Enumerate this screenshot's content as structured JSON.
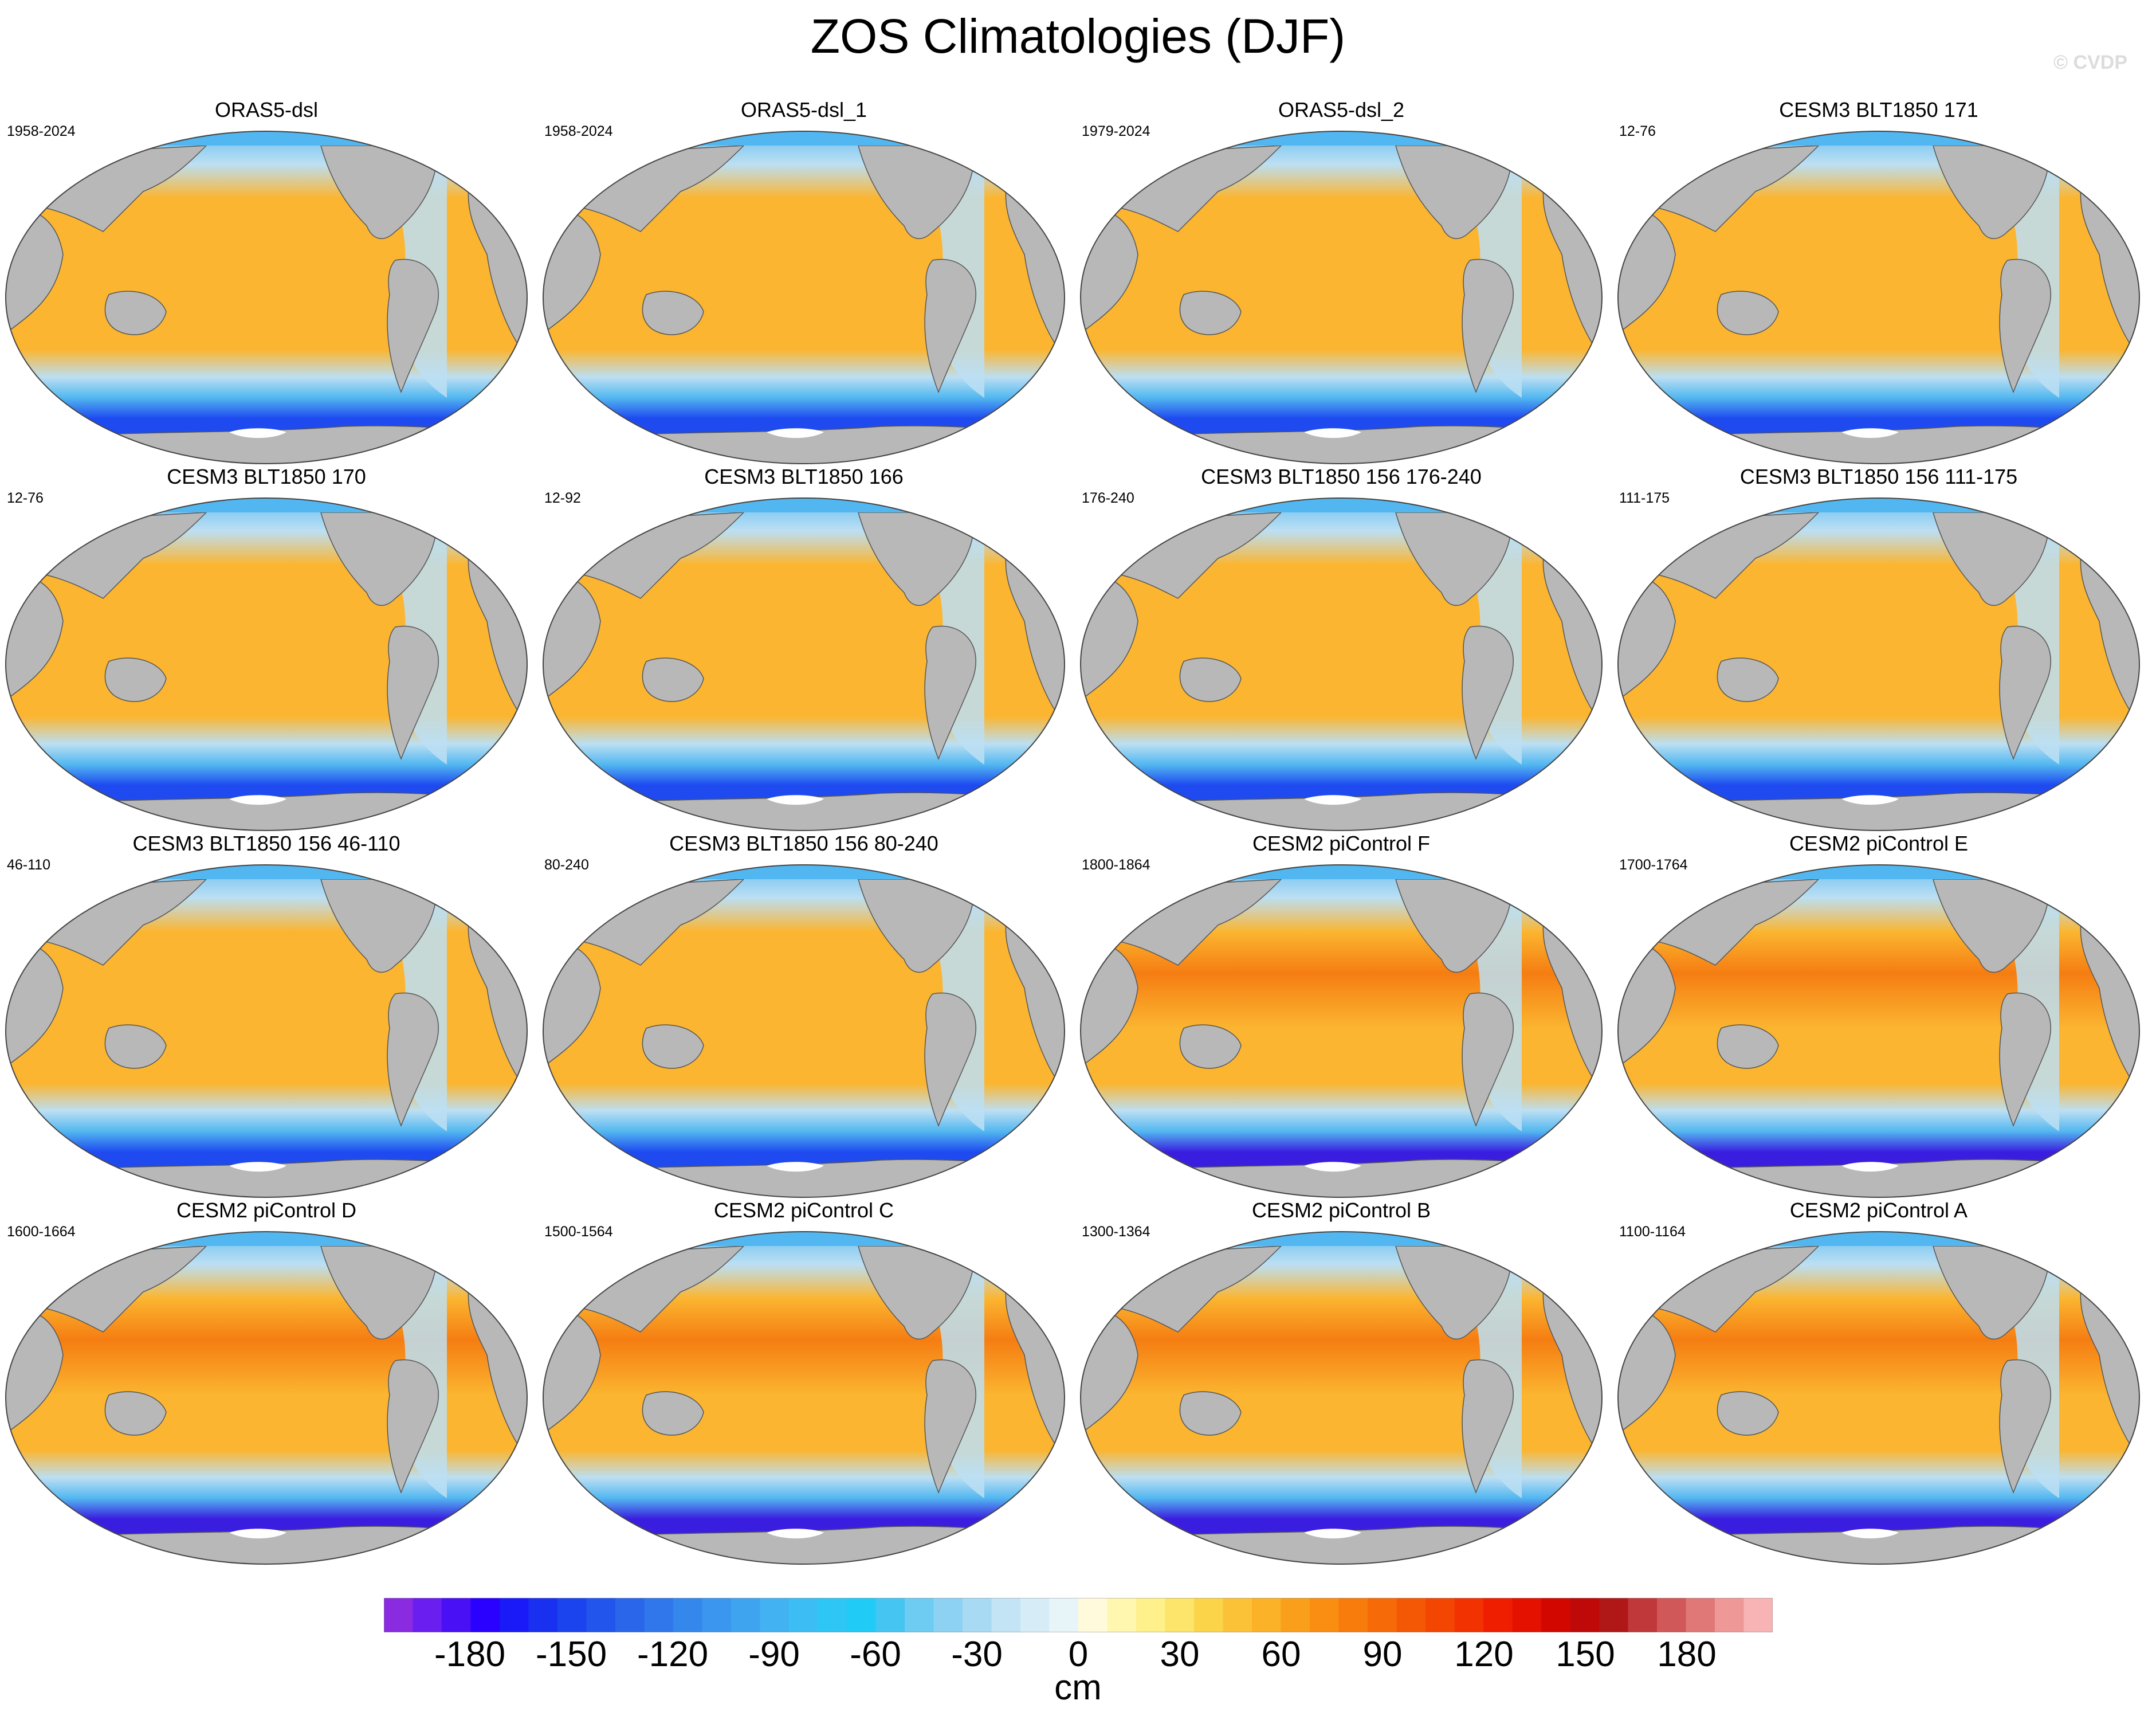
{
  "title": "ZOS Climatologies (DJF)",
  "watermark": "© CVDP",
  "palette": {
    "land": "#b8b8b8",
    "coast": "#555555",
    "ice": "#ffffff",
    "ocean_warm": "#fbb530",
    "ocean_hot": "#f57d12",
    "ocean_cool": "#bcdff3",
    "ocean_mid": "#52b7f0",
    "ocean_cold": "#1e4af0",
    "ocean_deep": "#3a1ee0"
  },
  "panels": [
    {
      "title": "ORAS5-dsl",
      "years": "1958-2024",
      "style": "obs"
    },
    {
      "title": "ORAS5-dsl_1",
      "years": "1958-2024",
      "style": "obs"
    },
    {
      "title": "ORAS5-dsl_2",
      "years": "1979-2024",
      "style": "obs"
    },
    {
      "title": "CESM3 BLT1850 171",
      "years": "12-76",
      "style": "cesm3"
    },
    {
      "title": "CESM3 BLT1850 170",
      "years": "12-76",
      "style": "cesm3"
    },
    {
      "title": "CESM3 BLT1850 166",
      "years": "12-92",
      "style": "cesm3"
    },
    {
      "title": "CESM3 BLT1850 156 176-240",
      "years": "176-240",
      "style": "cesm3"
    },
    {
      "title": "CESM3 BLT1850 156 111-175",
      "years": "111-175",
      "style": "cesm3"
    },
    {
      "title": "CESM3 BLT1850 156 46-110",
      "years": "46-110",
      "style": "cesm3"
    },
    {
      "title": "CESM3 BLT1850 156 80-240",
      "years": "80-240",
      "style": "cesm3"
    },
    {
      "title": "CESM2 piControl F",
      "years": "1800-1864",
      "style": "cesm2"
    },
    {
      "title": "CESM2 piControl E",
      "years": "1700-1764",
      "style": "cesm2"
    },
    {
      "title": "CESM2 piControl D",
      "years": "1600-1664",
      "style": "cesm2"
    },
    {
      "title": "CESM2 piControl C",
      "years": "1500-1564",
      "style": "cesm2"
    },
    {
      "title": "CESM2 piControl B",
      "years": "1300-1364",
      "style": "cesm2"
    },
    {
      "title": "CESM2 piControl A",
      "years": "1100-1164",
      "style": "cesm2"
    }
  ],
  "colorbar": {
    "units": "cm",
    "ticks": [
      "-180",
      "-150",
      "-120",
      "-90",
      "-60",
      "-30",
      "0",
      "30",
      "60",
      "90",
      "120",
      "150",
      "180"
    ],
    "colors": [
      "#8a2be2",
      "#6a1ef0",
      "#4a10f5",
      "#2a00ff",
      "#1a1af8",
      "#1a30f0",
      "#1c44ee",
      "#2255ec",
      "#2a66ea",
      "#2f77ea",
      "#3588eb",
      "#3a96ee",
      "#3fa4f0",
      "#42b2f2",
      "#3cbef4",
      "#2ec6f4",
      "#20ccf5",
      "#45c6f2",
      "#6ecbf2",
      "#8dd2f2",
      "#a8dbf3",
      "#c2e4f5",
      "#d6edf7",
      "#e8f5f8",
      "#fffadb",
      "#fff6b0",
      "#fef08a",
      "#fde46a",
      "#fcd44a",
      "#fbc238",
      "#fbb128",
      "#fa9f1c",
      "#f98e12",
      "#f77c0c",
      "#f66a08",
      "#f55805",
      "#f44603",
      "#f33202",
      "#f01e00",
      "#e41000",
      "#d20800",
      "#bf0808",
      "#b01818",
      "#c0383a",
      "#d05858",
      "#e07878",
      "#ee9898",
      "#f8b4b4"
    ]
  }
}
